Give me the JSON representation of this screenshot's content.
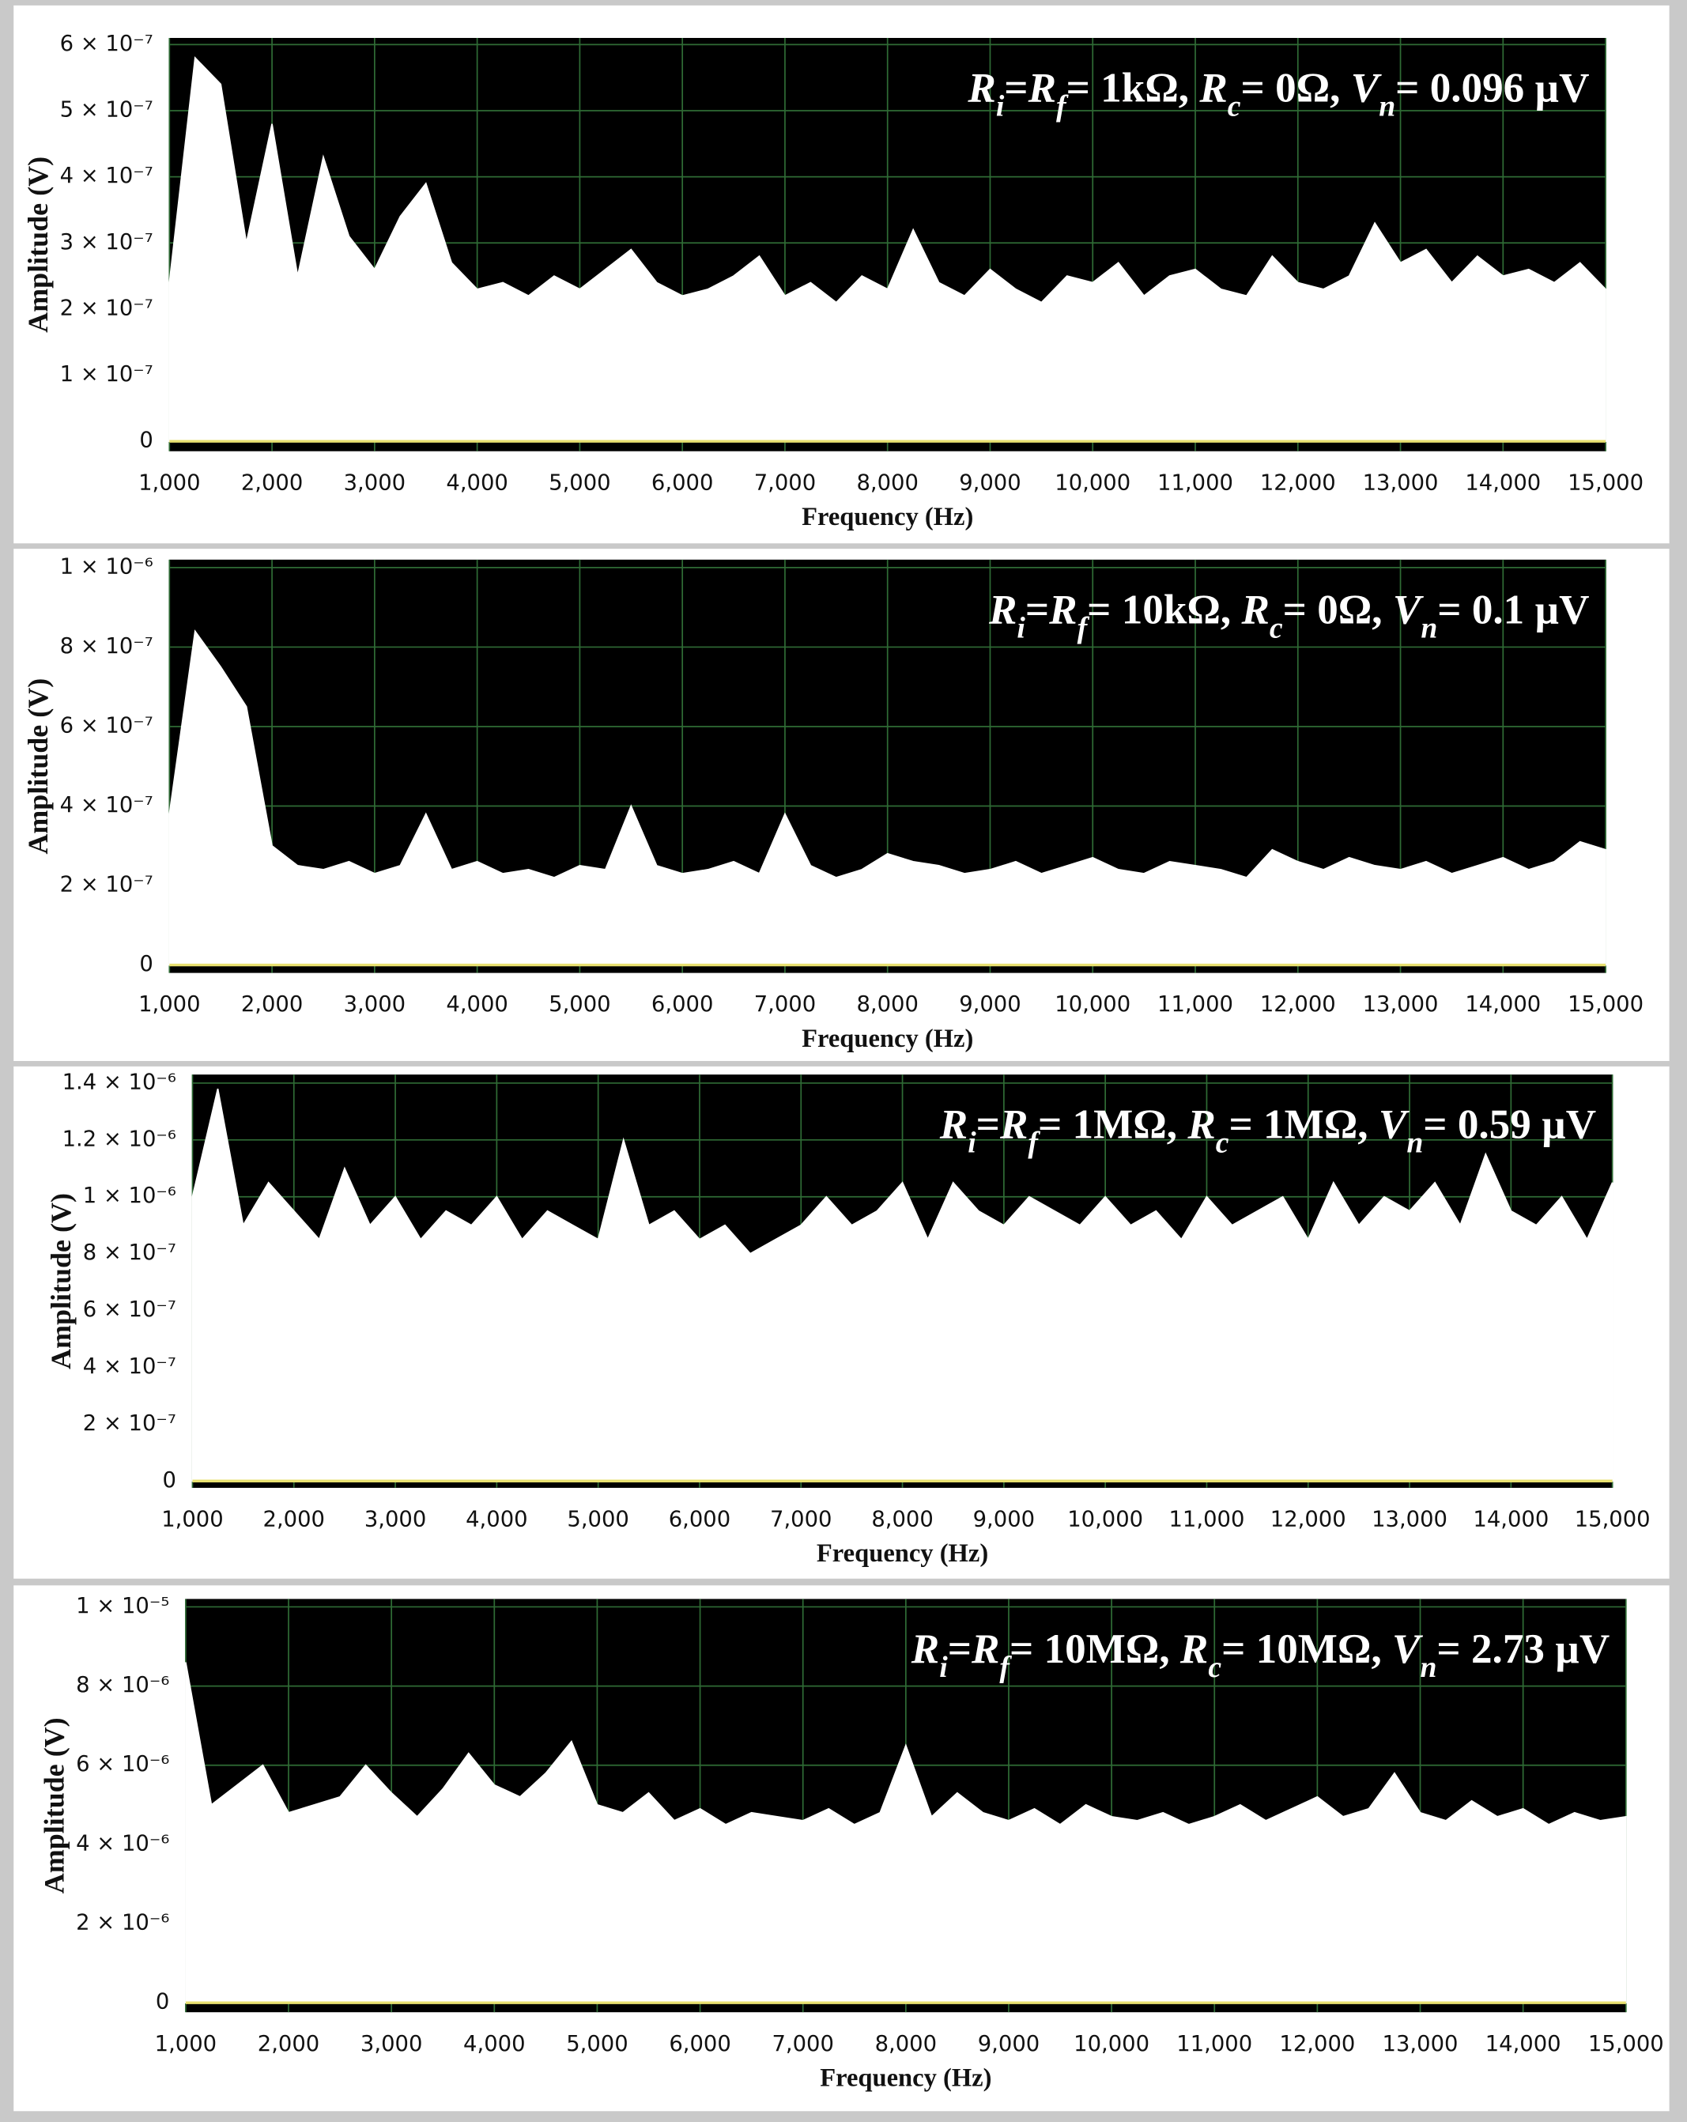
{
  "chart_data": [
    {
      "type": "area",
      "annotation": [
        {
          "text": "R",
          "italic": true
        },
        {
          "text": "i",
          "italic": true,
          "sub": true
        },
        {
          "text": "="
        },
        {
          "text": "R",
          "italic": true
        },
        {
          "text": "f",
          "italic": true,
          "sub": true
        },
        {
          "text": "= 1kΩ, "
        },
        {
          "text": "R",
          "italic": true
        },
        {
          "text": "c",
          "italic": true,
          "sub": true
        },
        {
          "text": "= 0Ω, "
        },
        {
          "text": "V",
          "italic": true
        },
        {
          "text": "n",
          "italic": true,
          "sub": true
        },
        {
          "text": "= 0.096 µV"
        }
      ],
      "x_label": "Frequency (Hz)",
      "y_label": "Amplitude (V)",
      "x": [
        1000,
        1250,
        1500,
        1750,
        2000,
        2250,
        2500,
        2750,
        3000,
        3250,
        3500,
        3750,
        4000,
        4250,
        4500,
        4750,
        5000,
        5250,
        5500,
        5750,
        6000,
        6250,
        6500,
        6750,
        7000,
        7250,
        7500,
        7750,
        8000,
        8250,
        8500,
        8750,
        9000,
        9250,
        9500,
        9750,
        10000,
        10250,
        10500,
        10750,
        11000,
        11250,
        11500,
        11750,
        12000,
        12250,
        12500,
        12750,
        13000,
        13250,
        13500,
        13750,
        14000,
        14250,
        14500,
        14750,
        15000
      ],
      "values": [
        2.4e-07,
        5.8e-07,
        5.4e-07,
        3e-07,
        4.8e-07,
        2.5e-07,
        4.3e-07,
        3.1e-07,
        2.6e-07,
        3.4e-07,
        3.9e-07,
        2.7e-07,
        2.3e-07,
        2.4e-07,
        2.2e-07,
        2.5e-07,
        2.3e-07,
        2.6e-07,
        2.9e-07,
        2.4e-07,
        2.2e-07,
        2.3e-07,
        2.5e-07,
        2.8e-07,
        2.2e-07,
        2.4e-07,
        2.1e-07,
        2.5e-07,
        2.3e-07,
        3.2e-07,
        2.4e-07,
        2.2e-07,
        2.6e-07,
        2.3e-07,
        2.1e-07,
        2.5e-07,
        2.4e-07,
        2.7e-07,
        2.2e-07,
        2.5e-07,
        2.6e-07,
        2.3e-07,
        2.2e-07,
        2.8e-07,
        2.4e-07,
        2.3e-07,
        2.5e-07,
        3.3e-07,
        2.7e-07,
        2.9e-07,
        2.4e-07,
        2.8e-07,
        2.5e-07,
        2.6e-07,
        2.4e-07,
        2.7e-07,
        2.3e-07
      ],
      "color": "#ffffff",
      "background": "#000000",
      "grid": true,
      "grid_color": "#2f6b35",
      "zero_line_color": "#e8e070",
      "xlim": [
        1000,
        15000
      ],
      "xticks": [
        {
          "value": 1000,
          "label": "1,000"
        },
        {
          "value": 2000,
          "label": "2,000"
        },
        {
          "value": 3000,
          "label": "3,000"
        },
        {
          "value": 4000,
          "label": "4,000"
        },
        {
          "value": 5000,
          "label": "5,000"
        },
        {
          "value": 6000,
          "label": "6,000"
        },
        {
          "value": 7000,
          "label": "7,000"
        },
        {
          "value": 8000,
          "label": "8,000"
        },
        {
          "value": 9000,
          "label": "9,000"
        },
        {
          "value": 10000,
          "label": "10,000"
        },
        {
          "value": 11000,
          "label": "11,000"
        },
        {
          "value": 12000,
          "label": "12,000"
        },
        {
          "value": 13000,
          "label": "13,000"
        },
        {
          "value": 14000,
          "label": "14,000"
        },
        {
          "value": 15000,
          "label": "15,000"
        }
      ],
      "ylim": [
        -1.5e-08,
        6.1e-07
      ],
      "yticks": [
        0,
        {
          "value": 1e-07,
          "label": "1 × 10⁻⁷"
        },
        {
          "value": 2e-07,
          "label": "2 × 10⁻⁷"
        },
        {
          "value": 3e-07,
          "label": "3 × 10⁻⁷"
        },
        {
          "value": 4e-07,
          "label": "4 × 10⁻⁷"
        },
        {
          "value": 5e-07,
          "label": "5 × 10⁻⁷"
        },
        {
          "value": 6e-07,
          "label": "6 × 10⁻⁷"
        }
      ]
    },
    {
      "type": "area",
      "annotation": [
        {
          "text": "R",
          "italic": true
        },
        {
          "text": "i",
          "italic": true,
          "sub": true
        },
        {
          "text": "="
        },
        {
          "text": "R",
          "italic": true
        },
        {
          "text": "f",
          "italic": true,
          "sub": true
        },
        {
          "text": "= 10kΩ, "
        },
        {
          "text": "R",
          "italic": true
        },
        {
          "text": "c",
          "italic": true,
          "sub": true
        },
        {
          "text": "= 0Ω, "
        },
        {
          "text": "V",
          "italic": true
        },
        {
          "text": "n",
          "italic": true,
          "sub": true
        },
        {
          "text": "= 0.1 µV"
        }
      ],
      "x_label": "Frequency (Hz)",
      "y_label": "Amplitude (V)",
      "x": [
        1000,
        1250,
        1500,
        1750,
        2000,
        2250,
        2500,
        2750,
        3000,
        3250,
        3500,
        3750,
        4000,
        4250,
        4500,
        4750,
        5000,
        5250,
        5500,
        5750,
        6000,
        6250,
        6500,
        6750,
        7000,
        7250,
        7500,
        7750,
        8000,
        8250,
        8500,
        8750,
        9000,
        9250,
        9500,
        9750,
        10000,
        10250,
        10500,
        10750,
        11000,
        11250,
        11500,
        11750,
        12000,
        12250,
        12500,
        12750,
        13000,
        13250,
        13500,
        13750,
        14000,
        14250,
        14500,
        14750,
        15000
      ],
      "values": [
        3.8e-07,
        8.4e-07,
        7.5e-07,
        6.5e-07,
        3e-07,
        2.5e-07,
        2.4e-07,
        2.6e-07,
        2.3e-07,
        2.5e-07,
        3.8e-07,
        2.4e-07,
        2.6e-07,
        2.3e-07,
        2.4e-07,
        2.2e-07,
        2.5e-07,
        2.4e-07,
        4e-07,
        2.5e-07,
        2.3e-07,
        2.4e-07,
        2.6e-07,
        2.3e-07,
        3.8e-07,
        2.5e-07,
        2.2e-07,
        2.4e-07,
        2.8e-07,
        2.6e-07,
        2.5e-07,
        2.3e-07,
        2.4e-07,
        2.6e-07,
        2.3e-07,
        2.5e-07,
        2.7e-07,
        2.4e-07,
        2.3e-07,
        2.6e-07,
        2.5e-07,
        2.4e-07,
        2.2e-07,
        2.9e-07,
        2.6e-07,
        2.4e-07,
        2.7e-07,
        2.5e-07,
        2.4e-07,
        2.6e-07,
        2.3e-07,
        2.5e-07,
        2.7e-07,
        2.4e-07,
        2.6e-07,
        3.1e-07,
        2.9e-07
      ],
      "color": "#ffffff",
      "background": "#000000",
      "grid": true,
      "grid_color": "#2f6b35",
      "zero_line_color": "#e8e070",
      "xlim": [
        1000,
        15000
      ],
      "xticks": [
        {
          "value": 1000,
          "label": "1,000"
        },
        {
          "value": 2000,
          "label": "2,000"
        },
        {
          "value": 3000,
          "label": "3,000"
        },
        {
          "value": 4000,
          "label": "4,000"
        },
        {
          "value": 5000,
          "label": "5,000"
        },
        {
          "value": 6000,
          "label": "6,000"
        },
        {
          "value": 7000,
          "label": "7,000"
        },
        {
          "value": 8000,
          "label": "8,000"
        },
        {
          "value": 9000,
          "label": "9,000"
        },
        {
          "value": 10000,
          "label": "10,000"
        },
        {
          "value": 11000,
          "label": "11,000"
        },
        {
          "value": 12000,
          "label": "12,000"
        },
        {
          "value": 13000,
          "label": "13,000"
        },
        {
          "value": 14000,
          "label": "14,000"
        },
        {
          "value": 15000,
          "label": "15,000"
        }
      ],
      "ylim": [
        -2e-08,
        1.02e-06
      ],
      "yticks": [
        0,
        {
          "value": 2e-07,
          "label": "2 × 10⁻⁷"
        },
        {
          "value": 4e-07,
          "label": "4 × 10⁻⁷"
        },
        {
          "value": 6e-07,
          "label": "6 × 10⁻⁷"
        },
        {
          "value": 8e-07,
          "label": "8 × 10⁻⁷"
        },
        {
          "value": 1e-06,
          "label": "1 × 10⁻⁶"
        }
      ]
    },
    {
      "type": "area",
      "annotation": [
        {
          "text": "R",
          "italic": true
        },
        {
          "text": "i",
          "italic": true,
          "sub": true
        },
        {
          "text": "="
        },
        {
          "text": "R",
          "italic": true
        },
        {
          "text": "f",
          "italic": true,
          "sub": true
        },
        {
          "text": "= 1MΩ, "
        },
        {
          "text": "R",
          "italic": true
        },
        {
          "text": "c",
          "italic": true,
          "sub": true
        },
        {
          "text": "= 1MΩ, "
        },
        {
          "text": "V",
          "italic": true
        },
        {
          "text": "n",
          "italic": true,
          "sub": true
        },
        {
          "text": "= 0.59 µV"
        }
      ],
      "x_label": "Frequency (Hz)",
      "y_label": "Amplitude (V)",
      "x": [
        1000,
        1250,
        1500,
        1750,
        2000,
        2250,
        2500,
        2750,
        3000,
        3250,
        3500,
        3750,
        4000,
        4250,
        4500,
        4750,
        5000,
        5250,
        5500,
        5750,
        6000,
        6250,
        6500,
        6750,
        7000,
        7250,
        7500,
        7750,
        8000,
        8250,
        8500,
        8750,
        9000,
        9250,
        9500,
        9750,
        10000,
        10250,
        10500,
        10750,
        11000,
        11250,
        11500,
        11750,
        12000,
        12250,
        12500,
        12750,
        13000,
        13250,
        13500,
        13750,
        14000,
        14250,
        14500,
        14750,
        15000
      ],
      "values": [
        1e-06,
        1.38e-06,
        9e-07,
        1.05e-06,
        9.5e-07,
        8.5e-07,
        1.1e-06,
        9e-07,
        1e-06,
        8.5e-07,
        9.5e-07,
        9e-07,
        1e-06,
        8.5e-07,
        9.5e-07,
        9e-07,
        8.5e-07,
        1.2e-06,
        9e-07,
        9.5e-07,
        8.5e-07,
        9e-07,
        8e-07,
        8.5e-07,
        9e-07,
        1e-06,
        9e-07,
        9.5e-07,
        1.05e-06,
        8.5e-07,
        1.05e-06,
        9.5e-07,
        9e-07,
        1e-06,
        9.5e-07,
        9e-07,
        1e-06,
        9e-07,
        9.5e-07,
        8.5e-07,
        1e-06,
        9e-07,
        9.5e-07,
        1e-06,
        8.5e-07,
        1.05e-06,
        9e-07,
        1e-06,
        9.5e-07,
        1.05e-06,
        9e-07,
        1.15e-06,
        9.5e-07,
        9e-07,
        1e-06,
        8.5e-07,
        1.05e-06
      ],
      "color": "#ffffff",
      "background": "#000000",
      "grid": true,
      "grid_color": "#2f6b35",
      "zero_line_color": "#e8e070",
      "xlim": [
        1000,
        15000
      ],
      "xticks": [
        {
          "value": 1000,
          "label": "1,000"
        },
        {
          "value": 2000,
          "label": "2,000"
        },
        {
          "value": 3000,
          "label": "3,000"
        },
        {
          "value": 4000,
          "label": "4,000"
        },
        {
          "value": 5000,
          "label": "5,000"
        },
        {
          "value": 6000,
          "label": "6,000"
        },
        {
          "value": 7000,
          "label": "7,000"
        },
        {
          "value": 8000,
          "label": "8,000"
        },
        {
          "value": 9000,
          "label": "9,000"
        },
        {
          "value": 10000,
          "label": "10,000"
        },
        {
          "value": 11000,
          "label": "11,000"
        },
        {
          "value": 12000,
          "label": "12,000"
        },
        {
          "value": 13000,
          "label": "13,000"
        },
        {
          "value": 14000,
          "label": "14,000"
        },
        {
          "value": 15000,
          "label": "15,000"
        }
      ],
      "ylim": [
        -2.4e-08,
        1.43e-06
      ],
      "yticks": [
        0,
        {
          "value": 2e-07,
          "label": "2 × 10⁻⁷"
        },
        {
          "value": 4e-07,
          "label": "4 × 10⁻⁷"
        },
        {
          "value": 6e-07,
          "label": "6 × 10⁻⁷"
        },
        {
          "value": 8e-07,
          "label": "8 × 10⁻⁷"
        },
        {
          "value": 1e-06,
          "label": "1 × 10⁻⁶"
        },
        {
          "value": 1.2e-06,
          "label": "1.2 × 10⁻⁶"
        },
        {
          "value": 1.4e-06,
          "label": "1.4 × 10⁻⁶"
        }
      ]
    },
    {
      "type": "area",
      "annotation": [
        {
          "text": "R",
          "italic": true
        },
        {
          "text": "i",
          "italic": true,
          "sub": true
        },
        {
          "text": "="
        },
        {
          "text": "R",
          "italic": true
        },
        {
          "text": "f",
          "italic": true,
          "sub": true
        },
        {
          "text": "= 10MΩ, "
        },
        {
          "text": "R",
          "italic": true
        },
        {
          "text": "c",
          "italic": true,
          "sub": true
        },
        {
          "text": "= 10MΩ, "
        },
        {
          "text": "V",
          "italic": true
        },
        {
          "text": "n",
          "italic": true,
          "sub": true
        },
        {
          "text": "= 2.73 µV"
        }
      ],
      "x_label": "Frequency (Hz)",
      "y_label": "Amplitude (V)",
      "x": [
        1000,
        1250,
        1500,
        1750,
        2000,
        2250,
        2500,
        2750,
        3000,
        3250,
        3500,
        3750,
        4000,
        4250,
        4500,
        4750,
        5000,
        5250,
        5500,
        5750,
        6000,
        6250,
        6500,
        6750,
        7000,
        7250,
        7500,
        7750,
        8000,
        8250,
        8500,
        8750,
        9000,
        9250,
        9500,
        9750,
        10000,
        10250,
        10500,
        10750,
        11000,
        11250,
        11500,
        11750,
        12000,
        12250,
        12500,
        12750,
        13000,
        13250,
        13500,
        13750,
        14000,
        14250,
        14500,
        14750,
        15000
      ],
      "values": [
        8.6e-06,
        5e-06,
        5.5e-06,
        6e-06,
        4.8e-06,
        5e-06,
        5.2e-06,
        6e-06,
        5.3e-06,
        4.7e-06,
        5.4e-06,
        6.3e-06,
        5.5e-06,
        5.2e-06,
        5.8e-06,
        6.6e-06,
        5e-06,
        4.8e-06,
        5.3e-06,
        4.6e-06,
        4.9e-06,
        4.5e-06,
        4.8e-06,
        4.7e-06,
        4.6e-06,
        4.9e-06,
        4.5e-06,
        4.8e-06,
        6.5e-06,
        4.7e-06,
        5.3e-06,
        4.8e-06,
        4.6e-06,
        4.9e-06,
        4.5e-06,
        5e-06,
        4.7e-06,
        4.6e-06,
        4.8e-06,
        4.5e-06,
        4.7e-06,
        5e-06,
        4.6e-06,
        4.9e-06,
        5.2e-06,
        4.7e-06,
        4.9e-06,
        5.8e-06,
        4.8e-06,
        4.6e-06,
        5.1e-06,
        4.7e-06,
        4.9e-06,
        4.5e-06,
        4.8e-06,
        4.6e-06,
        4.7e-06
      ],
      "color": "#ffffff",
      "background": "#000000",
      "grid": true,
      "grid_color": "#2f6b35",
      "zero_line_color": "#e8e070",
      "xlim": [
        1000,
        15000
      ],
      "xticks": [
        {
          "value": 1000,
          "label": "1,000"
        },
        {
          "value": 2000,
          "label": "2,000"
        },
        {
          "value": 3000,
          "label": "3,000"
        },
        {
          "value": 4000,
          "label": "4,000"
        },
        {
          "value": 5000,
          "label": "5,000"
        },
        {
          "value": 6000,
          "label": "6,000"
        },
        {
          "value": 7000,
          "label": "7,000"
        },
        {
          "value": 8000,
          "label": "8,000"
        },
        {
          "value": 9000,
          "label": "9,000"
        },
        {
          "value": 10000,
          "label": "10,000"
        },
        {
          "value": 11000,
          "label": "11,000"
        },
        {
          "value": 12000,
          "label": "12,000"
        },
        {
          "value": 13000,
          "label": "13,000"
        },
        {
          "value": 14000,
          "label": "14,000"
        },
        {
          "value": 15000,
          "label": "15,000"
        }
      ],
      "ylim": [
        -2.4e-07,
        1.02e-05
      ],
      "yticks": [
        0,
        {
          "value": 2e-06,
          "label": "2 × 10⁻⁶"
        },
        {
          "value": 4e-06,
          "label": "4 × 10⁻⁶"
        },
        {
          "value": 6e-06,
          "label": "6 × 10⁻⁶"
        },
        {
          "value": 8e-06,
          "label": "8 × 10⁻⁶"
        },
        {
          "value": 1e-05,
          "label": "1 × 10⁻⁵"
        }
      ]
    }
  ]
}
